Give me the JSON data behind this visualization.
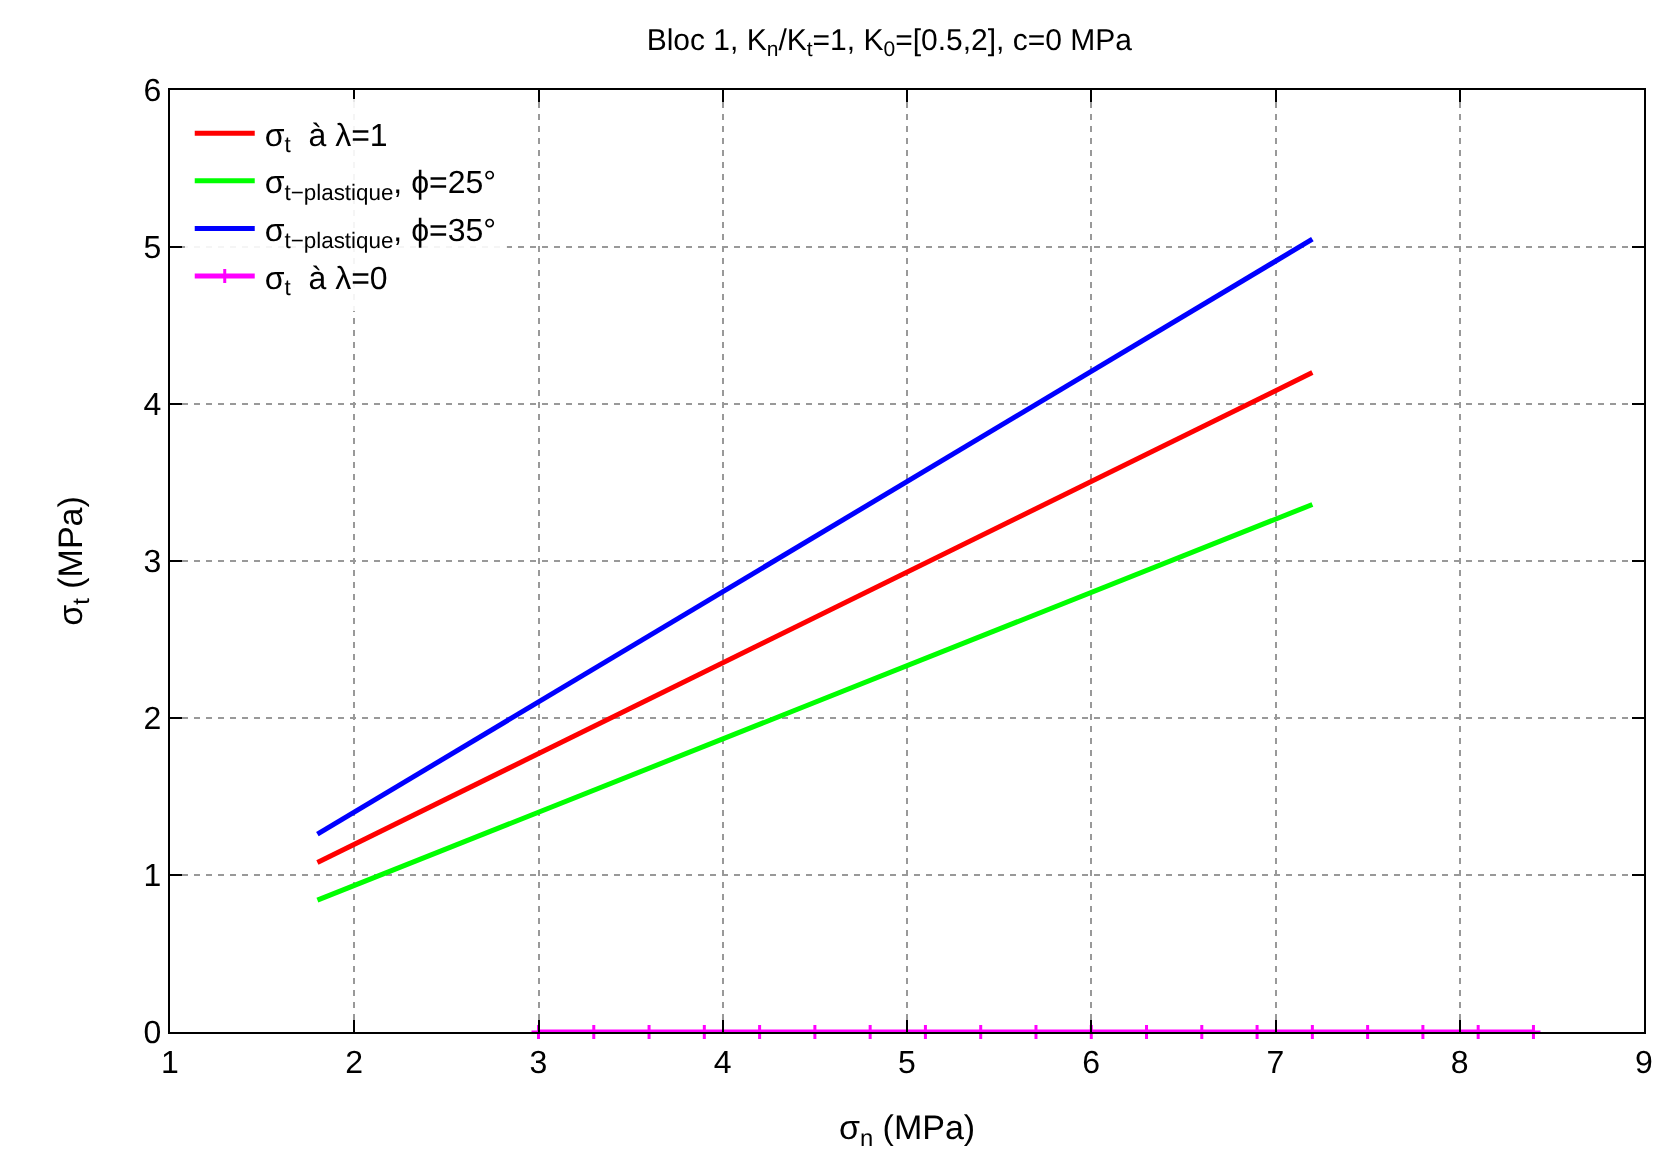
{
  "chart_data": {
    "type": "line",
    "title": "Bloc 1, K$_{n}$/K$_{t}$=1, K$_{0}$=[0.5,2], c=0 MPa",
    "xlabel": "σ$_{n}$ (MPa)",
    "ylabel": "σ$_{t}$ (MPa)",
    "xlim": [
      1,
      9
    ],
    "xticks": [
      1,
      2,
      3,
      4,
      5,
      6,
      7,
      8,
      9
    ],
    "ylim": [
      0,
      6
    ],
    "yticks": [
      0,
      1,
      2,
      3,
      4,
      5,
      6
    ],
    "grid": true,
    "legend": "top left",
    "line_style": "solid",
    "series": [
      {
        "name": "σ$_{t}$  à λ=1",
        "color": "#ff0000",
        "x": [
          1.8,
          7.2
        ],
        "values": [
          1.08,
          4.2
        ]
      },
      {
        "name": "σ$_{t−plastique}$, ϕ=25°",
        "color": "#00ff00",
        "x": [
          1.8,
          7.2
        ],
        "values": [
          0.84,
          3.36
        ]
      },
      {
        "name": "σ$_{t−plastique}$, ϕ=35°",
        "color": "#0000ff",
        "x": [
          1.8,
          7.2
        ],
        "values": [
          1.26,
          5.05
        ]
      },
      {
        "name": "σ$_{t}$  à λ=0",
        "color": "#ff00ff",
        "marker": "cross",
        "x": [
          3.0,
          3.3,
          3.6,
          3.9,
          4.2,
          4.5,
          4.8,
          5.1,
          5.4,
          5.7,
          6.0,
          6.3,
          6.6,
          6.9,
          7.2,
          7.5,
          7.8,
          8.1,
          8.4
        ],
        "values": [
          0,
          0,
          0,
          0,
          0,
          0,
          0,
          0,
          0,
          0,
          0,
          0,
          0,
          0,
          0,
          0,
          0,
          0,
          0
        ]
      }
    ]
  }
}
